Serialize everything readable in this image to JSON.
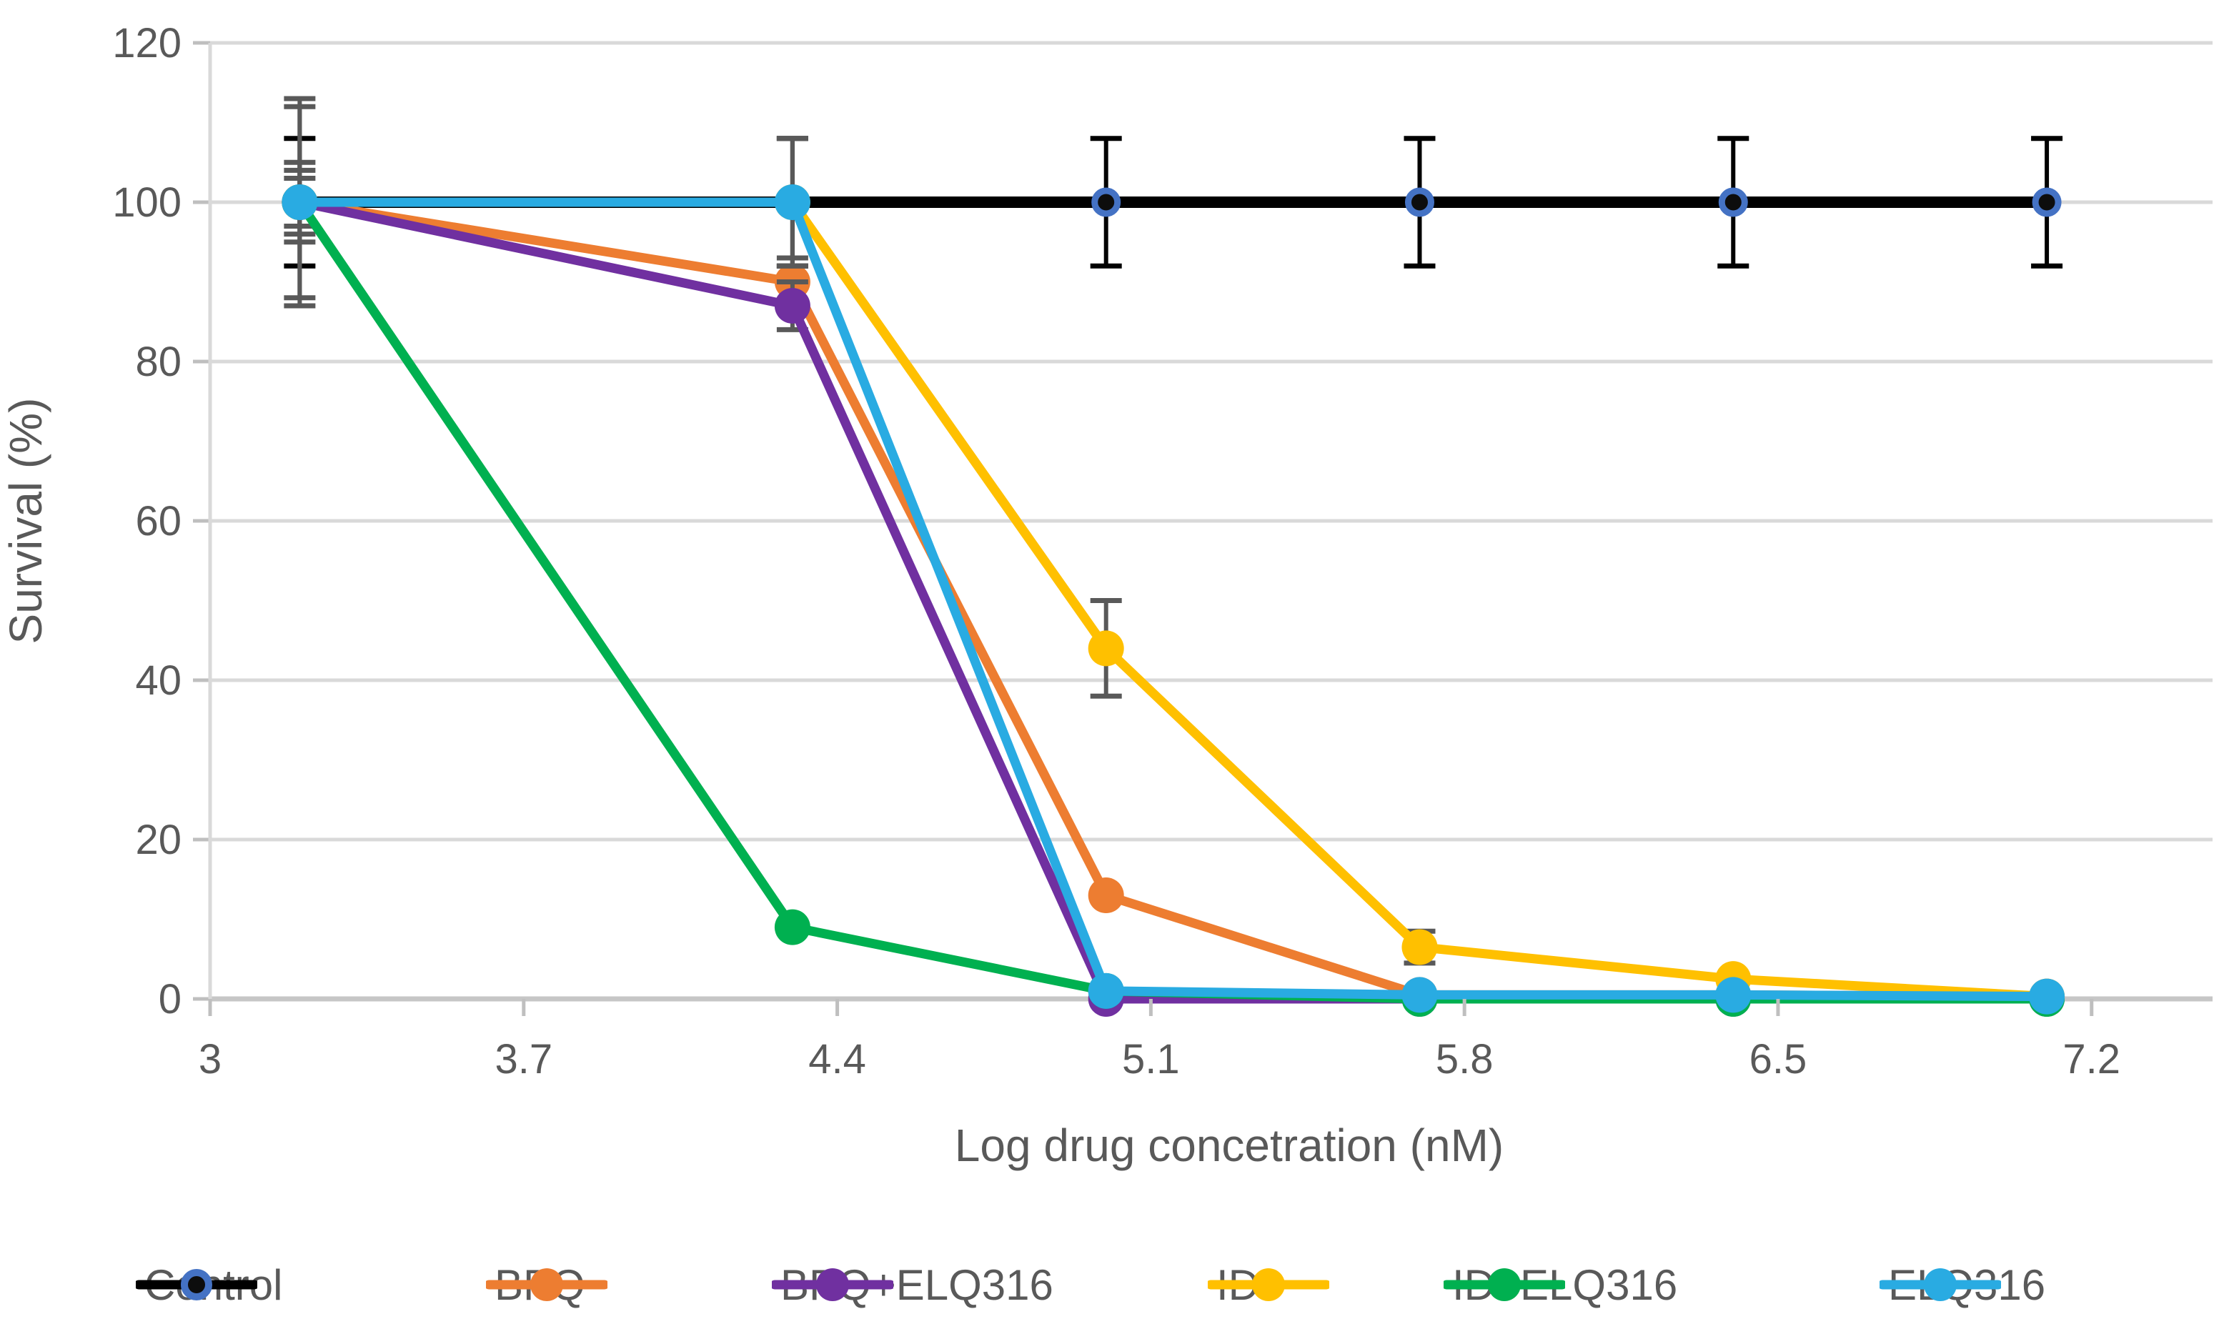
{
  "figure": {
    "background": "#FFFFFF",
    "text_color": "#595959",
    "grid_color": "#D9D9D9",
    "axis_line_color": "#C6C6C6",
    "tick_color": "#BFBFBF",
    "default_error_bar_color": "#595959"
  },
  "chart_data": {
    "type": "line",
    "title": "",
    "xlabel": "Log drug concetration (nM)",
    "ylabel": "Survival (%)",
    "grid": true,
    "legend_position": "bottom",
    "xlim": [
      3,
      7.47
    ],
    "ylim": [
      0,
      120
    ],
    "x_tick_values": [
      3,
      3.7,
      4.4,
      5.1,
      5.8,
      6.5,
      7.2
    ],
    "x_tick_labels": [
      "3",
      "3.7",
      "4.4",
      "5.1",
      "5.8",
      "6.5",
      "7.2"
    ],
    "y_tick_values": [
      0,
      20,
      40,
      60,
      80,
      100,
      120
    ],
    "y_tick_labels": [
      "0",
      "20",
      "40",
      "60",
      "80",
      "100",
      "120"
    ],
    "x": [
      3.2,
      4.3,
      5.0,
      5.7,
      6.4,
      7.1
    ],
    "series": [
      {
        "name": "Control",
        "color": "#000000",
        "marker_fill": "#0D0D0D",
        "marker_edge": "#4472C4",
        "marker_radius": 16,
        "line_width": 16,
        "err_color": "#000000",
        "values": [
          100,
          100,
          100,
          100,
          100,
          100
        ],
        "err": [
          8,
          8,
          8,
          8,
          8,
          8
        ]
      },
      {
        "name": "BPQ",
        "color": "#ED7D31",
        "marker_radius": 25,
        "line_width": 13,
        "err_color": "#595959",
        "values": [
          100,
          90,
          13,
          0.5,
          0.5,
          0.3
        ],
        "err": [
          5,
          3,
          0,
          0,
          0,
          0
        ]
      },
      {
        "name": "BPQ+ELQ316",
        "color": "#7030A0",
        "marker_radius": 25,
        "line_width": 13,
        "err_color": "#595959",
        "values": [
          100,
          87,
          0,
          0,
          0,
          0
        ],
        "err": [
          4,
          3,
          0,
          0,
          0,
          0
        ]
      },
      {
        "name": "ID",
        "color": "#FFC000",
        "marker_radius": 25,
        "line_width": 13,
        "err_color": "#595959",
        "values": [
          100,
          100,
          44,
          6.5,
          2.5,
          0.3
        ],
        "err": [
          12,
          8,
          6,
          2,
          0,
          0
        ]
      },
      {
        "name": "ID+ELQ316",
        "color": "#00B050",
        "marker_radius": 25,
        "line_width": 13,
        "err_color": "#595959",
        "values": [
          100,
          9,
          1,
          0,
          0,
          0
        ],
        "err": [
          3,
          0,
          0,
          0,
          0,
          0
        ]
      },
      {
        "name": "ELQ316",
        "color": "#29ABE2",
        "marker_radius": 25,
        "line_width": 13,
        "err_color": "#595959",
        "values": [
          100,
          100,
          1,
          0.5,
          0.5,
          0.3
        ],
        "err": [
          13,
          8,
          0,
          0,
          0,
          0
        ]
      }
    ],
    "legend_x": [
      190,
      680,
      1080,
      1690,
      2020,
      2630
    ]
  }
}
